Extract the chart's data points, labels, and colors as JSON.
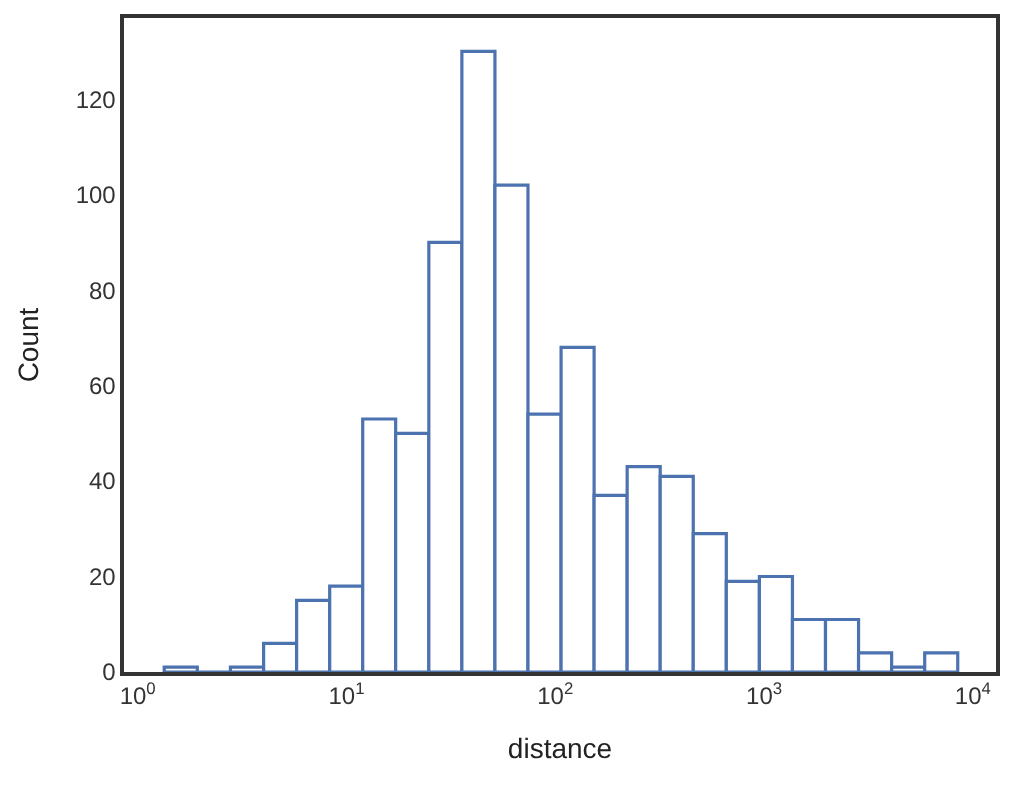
{
  "chart_data": {
    "type": "histogram",
    "xlabel": "distance",
    "ylabel": "Count",
    "color": "#4c72b0",
    "log": "x",
    "grid": false,
    "bins": [
      1.34,
      1.93,
      2.78,
      4.01,
      5.77,
      8.31,
      11.96,
      17.2,
      24.8,
      35.7,
      51.4,
      74.0,
      106.6,
      153.4,
      220.9,
      318.0,
      457.9,
      659.3,
      949.3,
      1367,
      1968,
      2834,
      4081,
      5876,
      8460
    ],
    "values": [
      1,
      0,
      1,
      6,
      15,
      18,
      53,
      50,
      90,
      130,
      102,
      54,
      68,
      37,
      43,
      41,
      29,
      19,
      20,
      11,
      11,
      4,
      1,
      4
    ],
    "xlim": [
      0.86,
      12900
    ],
    "xticks": [
      {
        "value": 1,
        "label": "10$^{0}$"
      },
      {
        "value": 10,
        "label": "10$^{1}$"
      },
      {
        "value": 100,
        "label": "10$^{2}$"
      },
      {
        "value": 1000,
        "label": "10$^{3}$"
      },
      {
        "value": 10000,
        "label": "10$^{4}$"
      }
    ],
    "ylim": [
      0,
      137
    ],
    "yticks": [
      0,
      20,
      40,
      60,
      80,
      100,
      120
    ]
  }
}
